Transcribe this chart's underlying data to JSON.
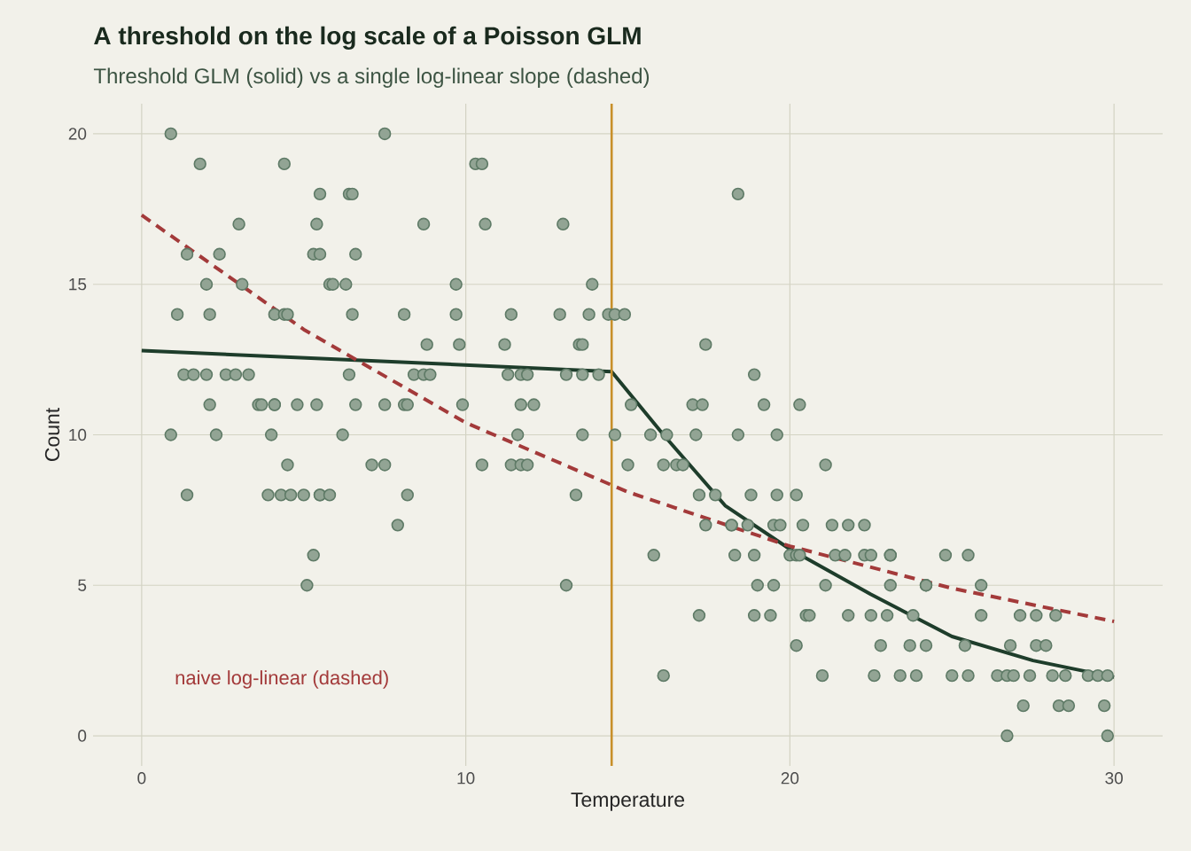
{
  "chart_data": {
    "type": "scatter",
    "title": "A threshold on the log scale of a Poisson GLM",
    "subtitle": "Threshold GLM (solid) vs a single log-linear slope (dashed)",
    "xlabel": "Temperature",
    "ylabel": "Count",
    "xlim": [
      -1.5,
      31.5
    ],
    "ylim": [
      -1,
      21
    ],
    "xticks": [
      0,
      10,
      20,
      30
    ],
    "yticks": [
      0,
      5,
      10,
      15,
      20
    ],
    "grid": true,
    "annotations": [
      "naive log-linear (dashed)"
    ],
    "ref_lines": [
      {
        "axis": "x",
        "value": 14.5,
        "color": "#c8902a"
      }
    ],
    "series": [
      {
        "type": "scatter",
        "marker": "circle",
        "color": "#5e7a66",
        "x": [
          0.9,
          7.5,
          1.8,
          4.4,
          10.3,
          10.5,
          5.5,
          6.4,
          6.5,
          18.4,
          3.0,
          5.4,
          8.7,
          10.6,
          13.0,
          1.4,
          2.4,
          5.3,
          5.5,
          6.6,
          2.0,
          3.1,
          5.8,
          5.9,
          6.3,
          9.7,
          13.9,
          1.1,
          2.1,
          4.1,
          4.4,
          4.5,
          6.5,
          8.1,
          9.7,
          11.4,
          12.9,
          13.8,
          14.4,
          14.6,
          14.9,
          8.8,
          9.8,
          11.2,
          13.5,
          13.6,
          17.4,
          1.3,
          1.6,
          2.0,
          2.6,
          2.9,
          3.3,
          6.4,
          8.4,
          8.7,
          8.9,
          11.3,
          11.7,
          11.9,
          13.1,
          13.6,
          14.1,
          18.9,
          2.1,
          3.6,
          3.7,
          4.1,
          4.1,
          4.8,
          5.4,
          6.6,
          7.5,
          8.1,
          8.2,
          9.9,
          11.7,
          12.1,
          15.1,
          17.0,
          17.3,
          19.2,
          20.3,
          0.9,
          2.3,
          4.0,
          6.2,
          11.6,
          13.6,
          14.6,
          15.7,
          16.2,
          17.1,
          18.4,
          19.6,
          4.5,
          7.1,
          7.5,
          10.5,
          11.4,
          11.7,
          11.9,
          15.0,
          16.1,
          16.5,
          16.7,
          21.1,
          1.4,
          3.9,
          4.3,
          4.6,
          5.0,
          5.5,
          5.5,
          5.8,
          8.2,
          13.4,
          17.2,
          17.7,
          18.8,
          19.6,
          20.2,
          7.9,
          17.4,
          18.2,
          18.2,
          18.7,
          19.5,
          19.7,
          20.4,
          21.3,
          21.8,
          22.3,
          5.3,
          15.8,
          18.3,
          18.9,
          20.0,
          20.2,
          20.3,
          21.4,
          21.7,
          22.3,
          22.5,
          23.1,
          23.1,
          24.8,
          25.5,
          5.1,
          13.1,
          19.0,
          19.5,
          21.1,
          23.1,
          24.2,
          24.2,
          25.9,
          17.2,
          18.9,
          19.4,
          20.5,
          20.6,
          21.8,
          22.5,
          23.0,
          23.8,
          25.9,
          27.1,
          27.6,
          28.2,
          20.2,
          22.8,
          23.7,
          24.2,
          25.4,
          26.8,
          27.6,
          27.9,
          16.1,
          21.0,
          22.6,
          23.4,
          23.9,
          25.0,
          25.5,
          26.4,
          26.7,
          26.9,
          27.4,
          28.1,
          28.5,
          29.2,
          29.5,
          29.8,
          27.2,
          28.3,
          28.6,
          29.7,
          26.7,
          29.8
        ],
        "values": [
          20,
          20,
          19,
          19,
          19,
          19,
          18,
          18,
          18,
          18,
          17,
          17,
          17,
          17,
          17,
          16,
          16,
          16,
          16,
          16,
          15,
          15,
          15,
          15,
          15,
          15,
          15,
          14,
          14,
          14,
          14,
          14,
          14,
          14,
          14,
          14,
          14,
          14,
          14,
          14,
          14,
          13,
          13,
          13,
          13,
          13,
          13,
          12,
          12,
          12,
          12,
          12,
          12,
          12,
          12,
          12,
          12,
          12,
          12,
          12,
          12,
          12,
          12,
          12,
          11,
          11,
          11,
          11,
          11,
          11,
          11,
          11,
          11,
          11,
          11,
          11,
          11,
          11,
          11,
          11,
          11,
          11,
          11,
          10,
          10,
          10,
          10,
          10,
          10,
          10,
          10,
          10,
          10,
          10,
          10,
          9,
          9,
          9,
          9,
          9,
          9,
          9,
          9,
          9,
          9,
          9,
          9,
          8,
          8,
          8,
          8,
          8,
          8,
          8,
          8,
          8,
          8,
          8,
          8,
          8,
          8,
          8,
          7,
          7,
          7,
          7,
          7,
          7,
          7,
          7,
          7,
          7,
          7,
          6,
          6,
          6,
          6,
          6,
          6,
          6,
          6,
          6,
          6,
          6,
          6,
          6,
          6,
          6,
          5,
          5,
          5,
          5,
          5,
          5,
          5,
          5,
          5,
          4,
          4,
          4,
          4,
          4,
          4,
          4,
          4,
          4,
          4,
          4,
          4,
          4,
          3,
          3,
          3,
          3,
          3,
          3,
          3,
          3,
          2,
          2,
          2,
          2,
          2,
          2,
          2,
          2,
          2,
          2,
          2,
          2,
          2,
          2,
          2,
          2,
          1,
          1,
          1,
          1,
          0,
          0
        ]
      },
      {
        "type": "line",
        "line_style": "solid",
        "color": "#1e3d2b",
        "x": [
          0,
          14.5,
          16.1,
          18,
          20,
          22.5,
          25,
          27.5,
          30
        ],
        "values": [
          12.8,
          12.1,
          10,
          7.65,
          6.2,
          4.7,
          3.3,
          2.5,
          1.95
        ]
      },
      {
        "type": "line",
        "line_style": "dashed",
        "color": "#a33a3a",
        "x": [
          0,
          5,
          10,
          15,
          20,
          25,
          30
        ],
        "values": [
          17.3,
          13.5,
          10.4,
          8.1,
          6.3,
          4.9,
          3.8
        ]
      }
    ]
  }
}
